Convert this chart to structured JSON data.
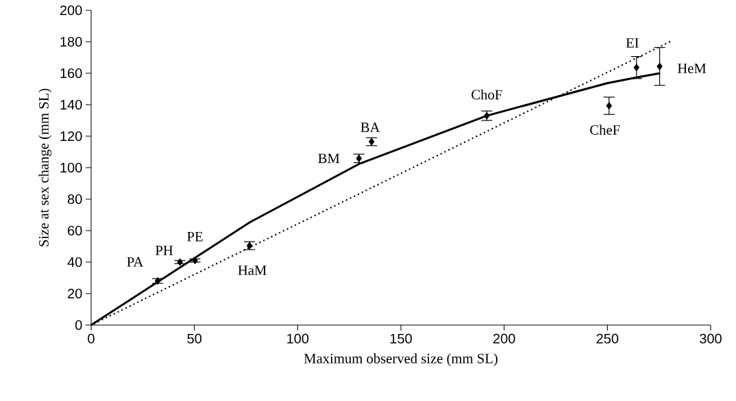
{
  "chart_data": {
    "type": "scatter",
    "xlabel": "Maximum observed size (mm SL)",
    "ylabel": "Size at sex change (mm SL)",
    "xlim": [
      0,
      300
    ],
    "ylim": [
      0,
      200
    ],
    "xticks": [
      0,
      50,
      100,
      150,
      200,
      250,
      300
    ],
    "yticks": [
      0,
      20,
      40,
      60,
      80,
      100,
      120,
      140,
      160,
      180,
      200
    ],
    "grid": false,
    "series": [
      {
        "color": "#000000",
        "marker": "diamond",
        "x": [
          32.2,
          43,
          50.3,
          76.7,
          129.7,
          135.8,
          191.6,
          250.8,
          264.1,
          275.3
        ],
        "values": [
          28,
          40,
          41,
          50.4,
          105.9,
          116.5,
          133,
          139.3,
          163.6,
          164.3
        ],
        "errors": [
          1.5,
          1,
          1,
          2.5,
          2.7,
          2.5,
          3,
          5.5,
          7,
          12
        ]
      },
      {
        "type": "line",
        "color": "#000000",
        "marker": "none",
        "line_style": "solid",
        "x": [
          0,
          76.9,
          129.7,
          191.6,
          250,
          264.4,
          275.5
        ],
        "values": [
          0,
          65.3,
          102.3,
          133,
          153.7,
          157.4,
          160
        ]
      },
      {
        "type": "line",
        "color": "#000000",
        "marker": "none",
        "line_style": "dotted",
        "x": [
          0,
          280.4
        ],
        "values": [
          0,
          180.1
        ]
      }
    ],
    "annotations": [
      {
        "text": "PA",
        "x": 32.2,
        "y": 28
      },
      {
        "text": "PH",
        "x": 43,
        "y": 40
      },
      {
        "text": "PE",
        "x": 50.3,
        "y": 41
      },
      {
        "text": "HaM",
        "x": 76.7,
        "y": 50.4
      },
      {
        "text": "BM",
        "x": 129.7,
        "y": 105.9
      },
      {
        "text": "BA",
        "x": 135.8,
        "y": 116.5
      },
      {
        "text": "ChoF",
        "x": 191.6,
        "y": 133
      },
      {
        "text": "CheF",
        "x": 250.8,
        "y": 139.3
      },
      {
        "text": "EI",
        "x": 264.1,
        "y": 163.6
      },
      {
        "text": "HeM",
        "x": 275.3,
        "y": 164.3
      }
    ]
  }
}
